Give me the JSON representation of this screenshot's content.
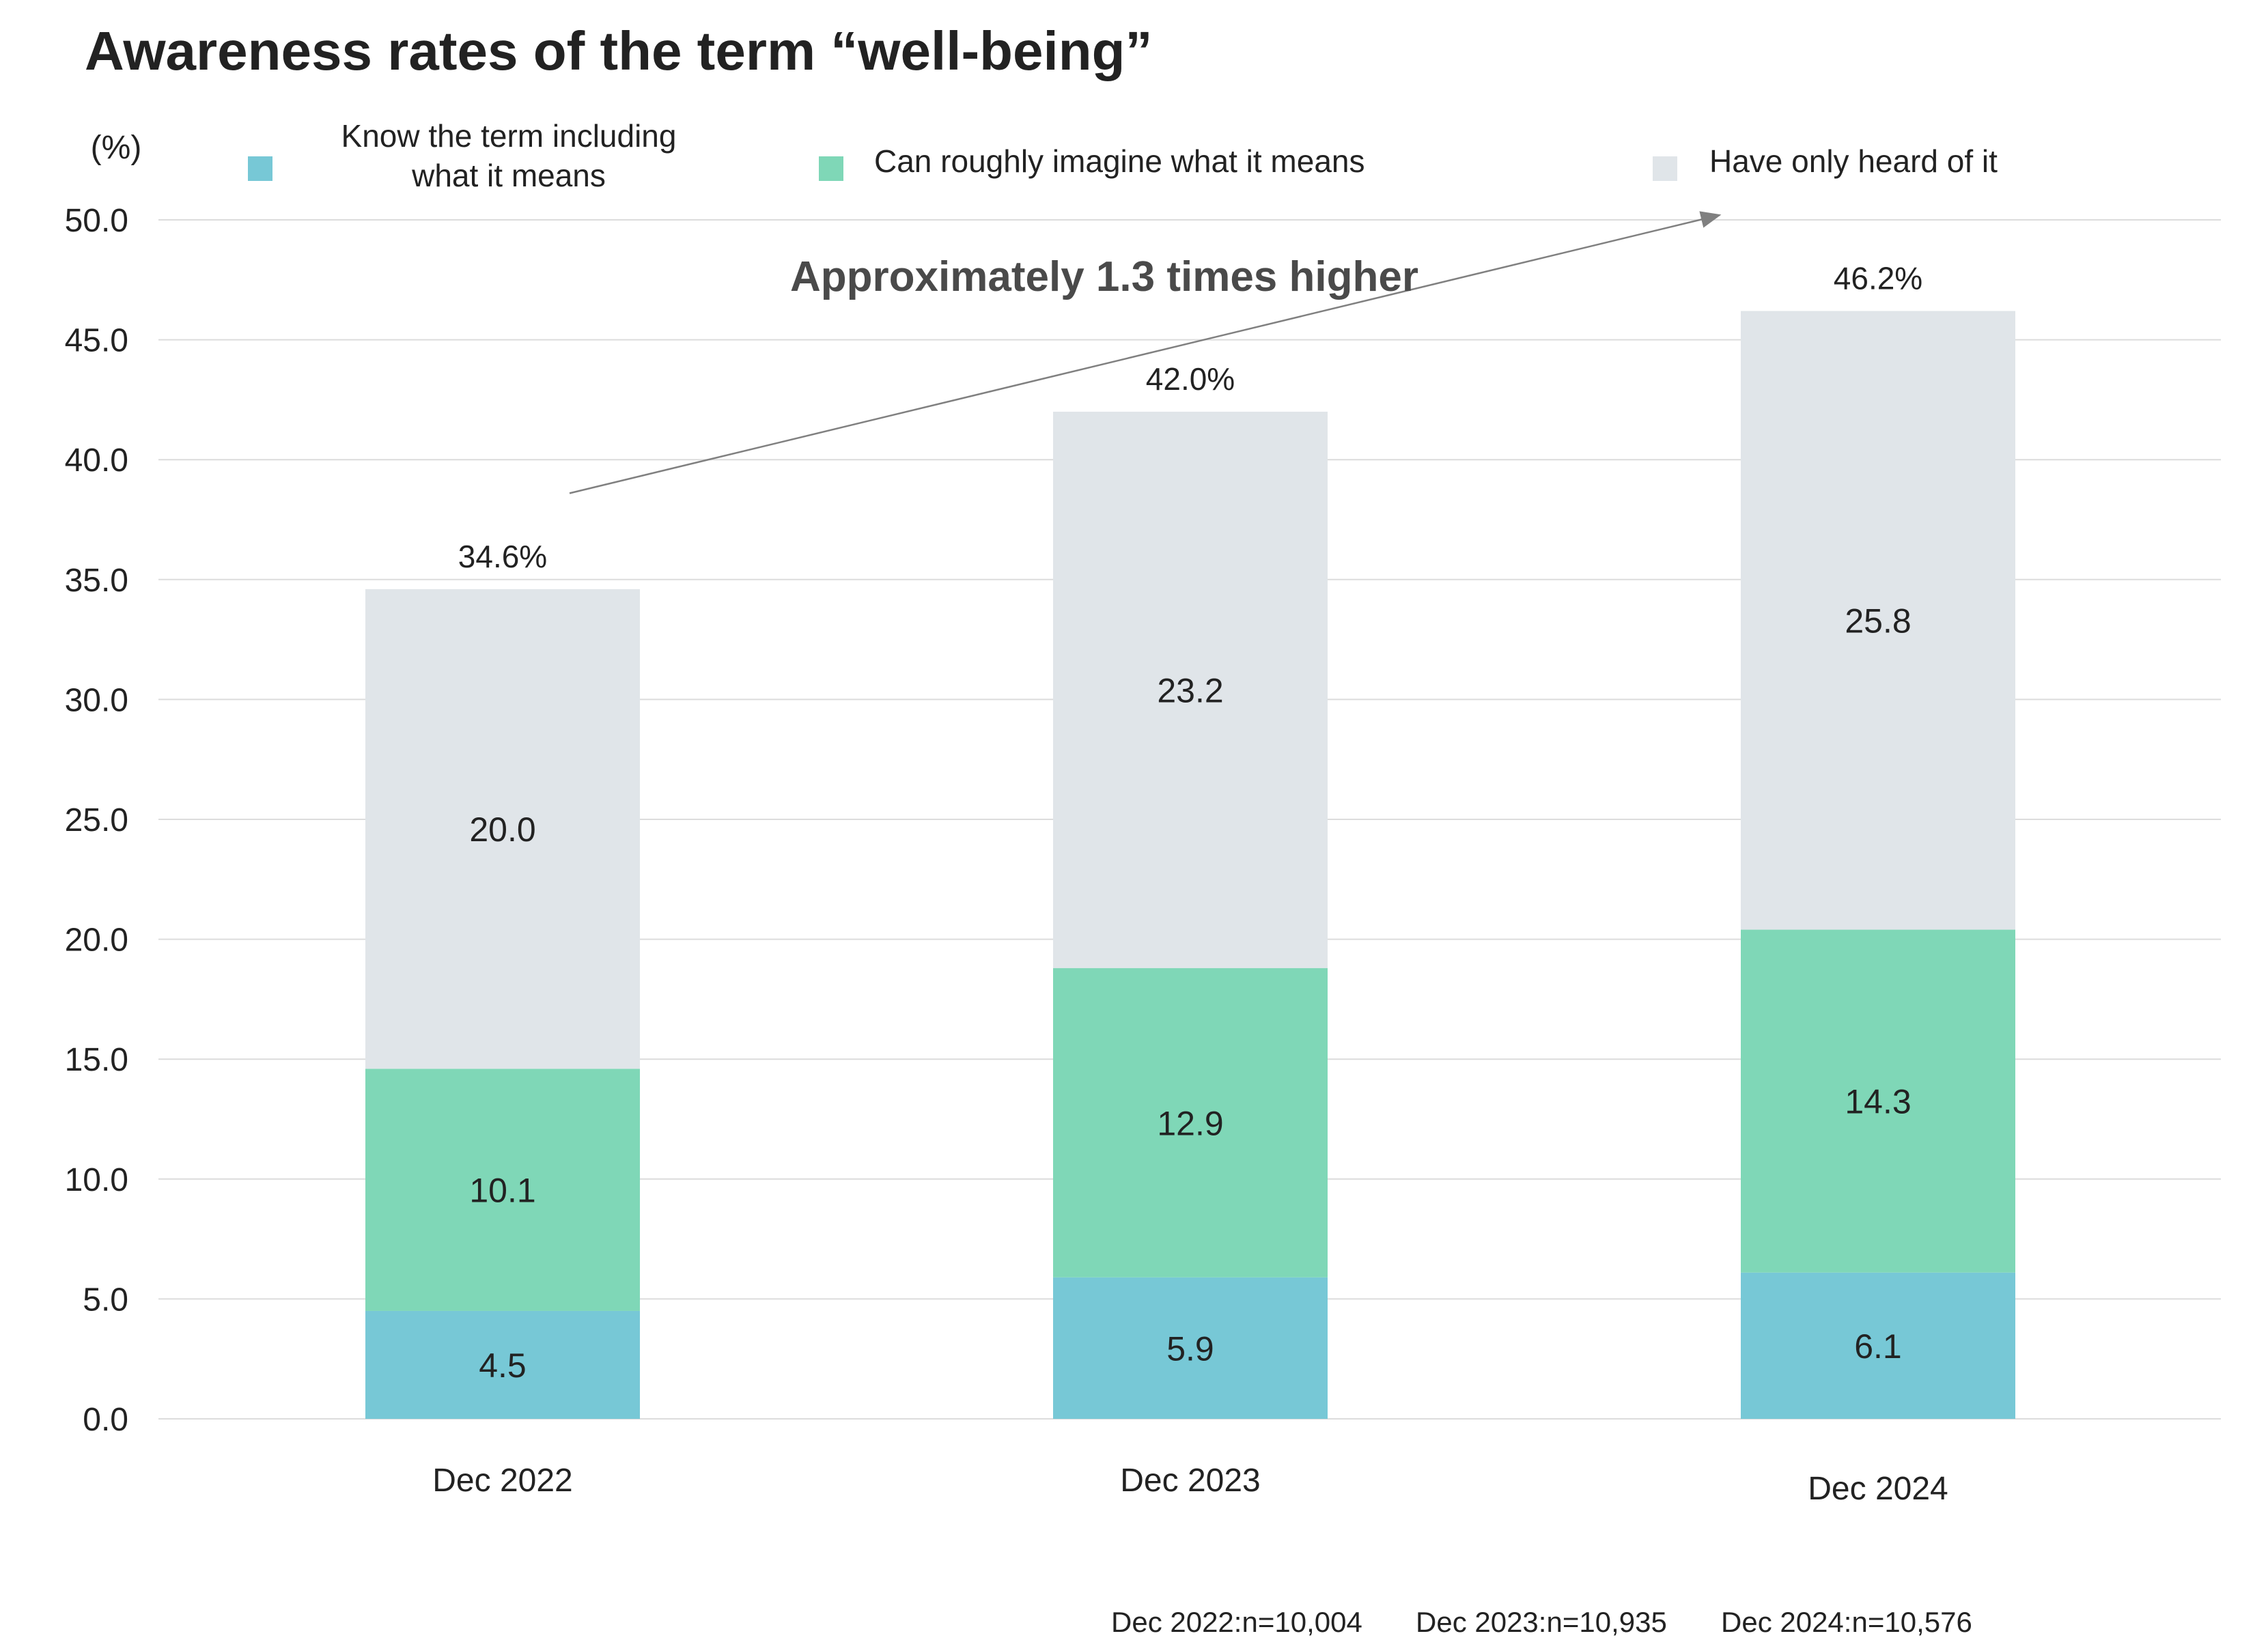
{
  "chart_data": {
    "type": "bar",
    "stacked": true,
    "title": "Awareness rates of the term “well-being”",
    "ylabel": "(%)",
    "xlabel": "",
    "ylim": [
      0,
      50
    ],
    "y_ticks": [
      "0.0",
      "5.0",
      "10.0",
      "15.0",
      "20.0",
      "25.0",
      "30.0",
      "35.0",
      "40.0",
      "45.0",
      "50.0"
    ],
    "grid": true,
    "legend_position": "top",
    "categories": [
      "Dec 2022",
      "Dec 2023",
      "Dec 2024"
    ],
    "series": [
      {
        "name": "Know the term including what it means",
        "legend_lines": [
          "Know the term including",
          "what it means"
        ],
        "color": "#77c8d6",
        "values": [
          4.5,
          5.9,
          6.1
        ],
        "labels": [
          "4.5",
          "5.9",
          "6.1"
        ]
      },
      {
        "name": "Can roughly imagine what it means",
        "legend_lines": [
          "Can roughly imagine what it means"
        ],
        "color": "#7fd7b7",
        "values": [
          10.1,
          12.9,
          14.3
        ],
        "labels": [
          "10.1",
          "12.9",
          "14.3"
        ]
      },
      {
        "name": "Have only heard of it",
        "legend_lines": [
          "Have only heard of it"
        ],
        "color": "#e0e5e9",
        "values": [
          20.0,
          23.2,
          25.8
        ],
        "labels": [
          "20.0",
          "23.2",
          "25.8"
        ]
      }
    ],
    "totals": [
      34.6,
      42.0,
      46.2
    ],
    "total_labels": [
      "34.6%",
      "42.0%",
      "46.2%"
    ],
    "annotation": {
      "text": "Approximately 1.3 times higher",
      "arrow_from": {
        "category": "Dec 2022",
        "value": 38.6
      },
      "arrow_to": {
        "category": "Dec 2024",
        "value": 50.2
      }
    },
    "footnote": [
      "Dec 2022:n=10,004",
      "Dec 2023:n=10,935",
      "Dec 2024:n=10,576"
    ]
  },
  "colors": {
    "text": "#222222",
    "grid": "#dcdcdc",
    "arrow": "#808080",
    "annotation": "#4a4a4a"
  }
}
